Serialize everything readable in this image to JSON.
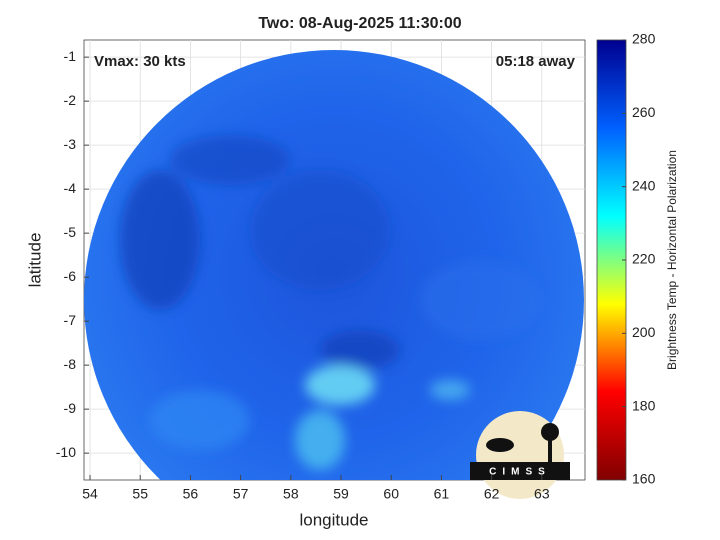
{
  "chart_data": {
    "type": "image",
    "title": "Two: 08-Aug-2025 11:30:00",
    "annotations": [
      "Vmax: 30 kts",
      "05:18 away"
    ],
    "xlabel": "longitude",
    "ylabel": "latitude",
    "xlim": [
      53.88,
      63.86
    ],
    "xticks": [
      54,
      55,
      56,
      57,
      58,
      59,
      60,
      61,
      62,
      63
    ],
    "ylim": [
      -10.61,
      -0.61
    ],
    "yticks": [
      -1,
      -2,
      -3,
      -4,
      -5,
      -6,
      -7,
      -8,
      -9,
      -10
    ],
    "grid": true,
    "colorbar": {
      "label": "Brightness Temp - Horizontal Polarization",
      "lim": [
        160,
        280
      ],
      "ticks": [
        160,
        180,
        200,
        220,
        240,
        260,
        280
      ],
      "colormap": [
        "#800000",
        "#ff0000",
        "#ffff00",
        "#00ffff",
        "#0060ff",
        "#00008f"
      ]
    },
    "logo": "CIMSS"
  }
}
